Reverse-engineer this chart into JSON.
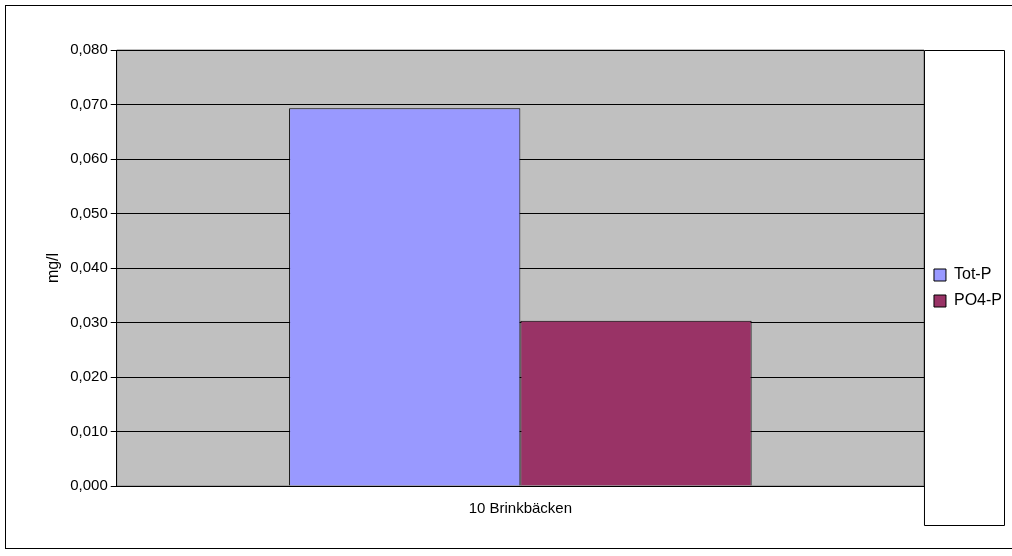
{
  "chart_data": {
    "type": "bar",
    "ylabel": "mg/l",
    "categories": [
      "10 Brinkbäcken"
    ],
    "series": [
      {
        "name": "Tot-P",
        "color": "#9999ff",
        "values": [
          0.0693
        ]
      },
      {
        "name": "PO4-P",
        "color": "#993366",
        "values": [
          0.0303
        ]
      }
    ],
    "ylim": [
      0,
      0.08
    ],
    "yticks": [
      {
        "value": 0,
        "label": "0,000"
      },
      {
        "value": 0.01,
        "label": "0,010"
      },
      {
        "value": 0.02,
        "label": "0,020"
      },
      {
        "value": 0.03,
        "label": "0,030"
      },
      {
        "value": 0.04,
        "label": "0,040"
      },
      {
        "value": 0.05,
        "label": "0,050"
      },
      {
        "value": 0.06,
        "label": "0,060"
      },
      {
        "value": 0.07,
        "label": "0,070"
      },
      {
        "value": 0.08,
        "label": "0,080"
      }
    ],
    "grid": "y",
    "legend": "right"
  }
}
